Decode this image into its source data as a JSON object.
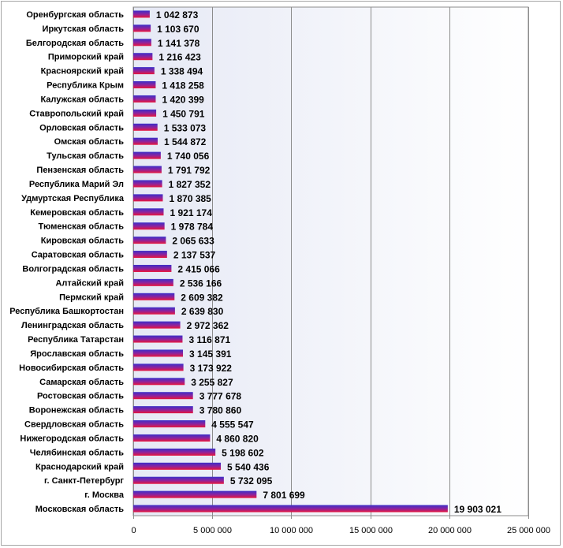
{
  "chart_data": {
    "type": "bar",
    "orientation": "horizontal",
    "categories": [
      "Оренбургская область",
      "Иркутская область",
      "Белгородская область",
      "Приморский край",
      "Красноярский край",
      "Республика Крым",
      "Калужская область",
      "Ставропольский край",
      "Орловская область",
      "Омская область",
      "Тульская область",
      "Пензенская область",
      "Республика Марий Эл",
      "Удмуртская Республика",
      "Кемеровская область",
      "Тюменская область",
      "Кировская область",
      "Саратовская область",
      "Волгоградская область",
      "Алтайский край",
      "Пермский край",
      "Республика Башкортостан",
      "Ленинградская область",
      "Республика Татарстан",
      "Ярославская область",
      "Новосибирская область",
      "Самарская область",
      "Ростовская область",
      "Воронежская область",
      "Свердловская область",
      "Нижегородская область",
      "Челябинская область",
      "Краснодарский край",
      "г. Санкт-Петербург",
      "г. Москва",
      "Московская область"
    ],
    "values": [
      1042873,
      1103670,
      1141378,
      1216423,
      1338494,
      1418258,
      1420399,
      1450791,
      1533073,
      1544872,
      1740056,
      1791792,
      1827352,
      1870385,
      1921174,
      1978784,
      2065633,
      2137537,
      2415066,
      2536166,
      2609382,
      2639830,
      2972362,
      3116871,
      3145391,
      3173922,
      3255827,
      3777678,
      3780860,
      4555547,
      4860820,
      5198602,
      5540436,
      5732095,
      7801699,
      19903021
    ],
    "value_labels": [
      "1 042 873",
      "1 103 670",
      "1 141 378",
      "1 216 423",
      "1 338 494",
      "1 418 258",
      "1 420 399",
      "1 450 791",
      "1 533 073",
      "1 544 872",
      "1 740 056",
      "1 791 792",
      "1 827 352",
      "1 870 385",
      "1 921 174",
      "1 978 784",
      "2 065 633",
      "2 137 537",
      "2 415 066",
      "2 536 166",
      "2 609 382",
      "2 639 830",
      "2 972 362",
      "3 116 871",
      "3 145 391",
      "3 173 922",
      "3 255 827",
      "3 777 678",
      "3 780 860",
      "4 555 547",
      "4 860 820",
      "5 198 602",
      "5 540 436",
      "5 732 095",
      "7 801 699",
      "19 903 021"
    ],
    "xlim": [
      0,
      25000000
    ],
    "x_ticks": [
      0,
      5000000,
      10000000,
      15000000,
      20000000,
      25000000
    ],
    "x_tick_labels": [
      "0",
      "5 000 000",
      "10 000 000",
      "15 000 000",
      "20 000 000",
      "25 000 000"
    ],
    "grid": "vertical",
    "legend": "none",
    "colors": {
      "bar_top": "#3a2fc8",
      "bar_bottom": "#e8163c",
      "plot_bg_a": "#e6e9f5",
      "plot_bg_b": "#ffffff",
      "grid": "#8c8c8c",
      "frame": "#a6a6a6"
    }
  }
}
